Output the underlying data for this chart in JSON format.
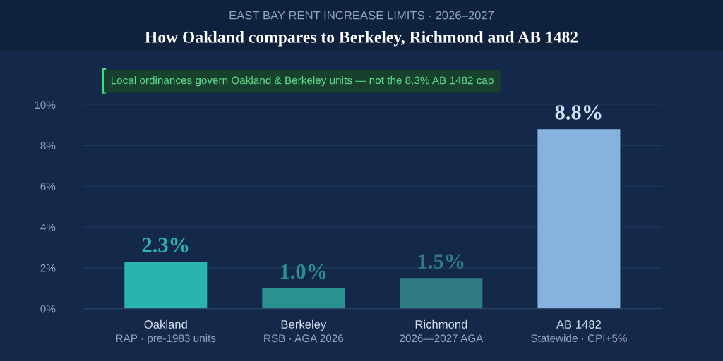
{
  "chart_data": {
    "type": "bar",
    "subtitle": "EAST BAY RENT INCREASE LIMITS · 2026–2027",
    "title": "How Oakland compares to Berkeley, Richmond and AB 1482",
    "annotations": [
      "Local ordinances govern Oakland & Berkeley units — not the 8.3% AB 1482 cap"
    ],
    "categories": [
      "Oakland\nRAP · pre-1983 units",
      "Berkeley\nRSB · AGA 2026",
      "Richmond\n2026—2027 AGA",
      "AB 1482\nStatewide · CPI+5%"
    ],
    "values": [
      2.3,
      1.0,
      1.5,
      8.8
    ],
    "colors": [
      "#2bb3b1",
      "#2a9190",
      "#2f7d83",
      "#86b3de"
    ],
    "value_labels": [
      "2.3%",
      "1.0%",
      "1.5%",
      "8.8%"
    ],
    "ylim": [
      0,
      10
    ],
    "yticks": [
      {
        "value": 0,
        "label": "0%"
      },
      {
        "value": 2,
        "label": "2%"
      },
      {
        "value": 4,
        "label": "4%"
      },
      {
        "value": 6,
        "label": "6%"
      },
      {
        "value": 8,
        "label": "8%"
      },
      {
        "value": 10,
        "label": "10%"
      }
    ],
    "grid": "y"
  }
}
